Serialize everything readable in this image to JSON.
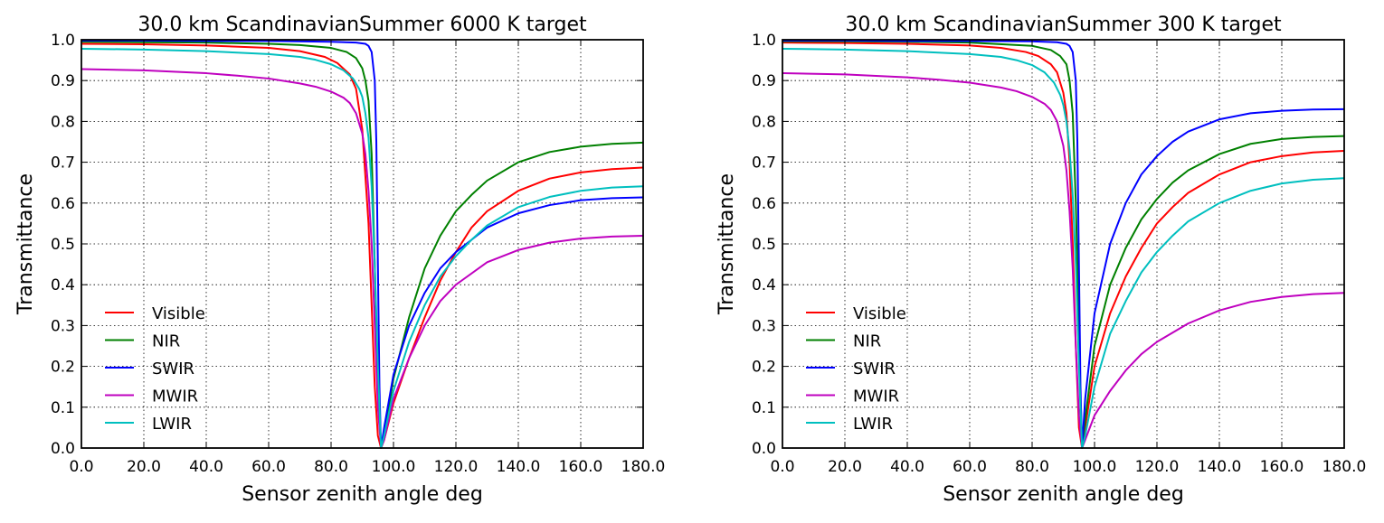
{
  "chart_data": [
    {
      "type": "line",
      "title": "30.0 km ScandinavianSummer 6000 K target",
      "xlabel": "Sensor zenith angle deg",
      "ylabel": "Transmittance",
      "xlim": [
        0,
        180
      ],
      "ylim": [
        0,
        1
      ],
      "xticks": [
        "0.0",
        "20.0",
        "40.0",
        "60.0",
        "80.0",
        "100.0",
        "120.0",
        "140.0",
        "160.0",
        "180.0"
      ],
      "yticks": [
        "0.0",
        "0.1",
        "0.2",
        "0.3",
        "0.4",
        "0.5",
        "0.6",
        "0.7",
        "0.8",
        "0.9",
        "1.0"
      ],
      "grid": true,
      "legend_position": "lower-left",
      "series": [
        {
          "name": "Visible",
          "color": "#ff0000",
          "x": [
            0,
            20,
            40,
            60,
            70,
            78,
            82,
            86,
            88,
            90,
            92,
            93,
            94,
            95,
            96,
            97,
            100,
            105,
            110,
            115,
            120,
            125,
            130,
            140,
            150,
            160,
            170,
            180
          ],
          "y": [
            0.99,
            0.989,
            0.986,
            0.98,
            0.972,
            0.958,
            0.943,
            0.915,
            0.88,
            0.78,
            0.55,
            0.35,
            0.15,
            0.03,
            0.0,
            0.02,
            0.11,
            0.22,
            0.32,
            0.41,
            0.48,
            0.54,
            0.58,
            0.63,
            0.66,
            0.675,
            0.683,
            0.687
          ]
        },
        {
          "name": "NIR",
          "color": "#008000",
          "x": [
            0,
            20,
            40,
            60,
            70,
            80,
            85,
            88,
            90,
            91,
            92,
            93,
            94,
            95,
            96,
            97,
            100,
            105,
            110,
            115,
            120,
            125,
            130,
            140,
            150,
            160,
            170,
            180
          ],
          "y": [
            0.995,
            0.994,
            0.993,
            0.99,
            0.987,
            0.98,
            0.97,
            0.955,
            0.93,
            0.9,
            0.85,
            0.72,
            0.45,
            0.15,
            0.0,
            0.03,
            0.17,
            0.32,
            0.44,
            0.52,
            0.58,
            0.62,
            0.655,
            0.7,
            0.725,
            0.738,
            0.745,
            0.748
          ]
        },
        {
          "name": "SWIR",
          "color": "#0000ff",
          "x": [
            0,
            20,
            40,
            60,
            80,
            88,
            91,
            92,
            93,
            94,
            94.5,
            95,
            95.5,
            96,
            97,
            100,
            105,
            110,
            115,
            120,
            125,
            130,
            140,
            150,
            160,
            170,
            180
          ],
          "y": [
            0.998,
            0.998,
            0.997,
            0.997,
            0.995,
            0.993,
            0.99,
            0.985,
            0.97,
            0.9,
            0.75,
            0.45,
            0.15,
            0.0,
            0.05,
            0.18,
            0.3,
            0.38,
            0.44,
            0.48,
            0.51,
            0.54,
            0.575,
            0.595,
            0.607,
            0.612,
            0.614
          ]
        },
        {
          "name": "MWIR",
          "color": "#bf00bf",
          "x": [
            0,
            20,
            40,
            50,
            60,
            70,
            75,
            80,
            84,
            86,
            88,
            90,
            91,
            92,
            93,
            94,
            95,
            96,
            97,
            100,
            105,
            110,
            115,
            120,
            130,
            140,
            150,
            160,
            170,
            180
          ],
          "y": [
            0.928,
            0.925,
            0.918,
            0.912,
            0.905,
            0.893,
            0.885,
            0.873,
            0.858,
            0.845,
            0.82,
            0.77,
            0.72,
            0.63,
            0.5,
            0.3,
            0.1,
            0.0,
            0.02,
            0.12,
            0.22,
            0.3,
            0.36,
            0.4,
            0.455,
            0.485,
            0.503,
            0.513,
            0.518,
            0.52
          ]
        },
        {
          "name": "LWIR",
          "color": "#00bfbf",
          "x": [
            0,
            20,
            40,
            60,
            70,
            75,
            80,
            84,
            87,
            89,
            90,
            91,
            92,
            93,
            94,
            95,
            96,
            97,
            100,
            105,
            110,
            115,
            120,
            125,
            130,
            140,
            150,
            160,
            170,
            180
          ],
          "y": [
            0.978,
            0.976,
            0.972,
            0.965,
            0.958,
            0.951,
            0.94,
            0.925,
            0.905,
            0.88,
            0.86,
            0.82,
            0.76,
            0.64,
            0.45,
            0.2,
            0.0,
            0.03,
            0.14,
            0.26,
            0.35,
            0.42,
            0.47,
            0.51,
            0.545,
            0.59,
            0.615,
            0.63,
            0.638,
            0.641
          ]
        }
      ]
    },
    {
      "type": "line",
      "title": "30.0 km ScandinavianSummer 300 K target",
      "xlabel": "Sensor zenith angle deg",
      "ylabel": "Transmittance",
      "xlim": [
        0,
        180
      ],
      "ylim": [
        0,
        1
      ],
      "xticks": [
        "0.0",
        "20.0",
        "40.0",
        "60.0",
        "80.0",
        "100.0",
        "120.0",
        "140.0",
        "160.0",
        "180.0"
      ],
      "yticks": [
        "0.0",
        "0.1",
        "0.2",
        "0.3",
        "0.4",
        "0.5",
        "0.6",
        "0.7",
        "0.8",
        "0.9",
        "1.0"
      ],
      "grid": true,
      "legend_position": "lower-left",
      "series": [
        {
          "name": "Visible",
          "color": "#ff0000",
          "x": [
            0,
            20,
            40,
            60,
            70,
            78,
            82,
            86,
            88,
            90,
            91,
            92,
            93,
            94,
            95,
            96,
            97,
            100,
            105,
            110,
            115,
            120,
            125,
            130,
            140,
            150,
            160,
            170,
            180
          ],
          "y": [
            0.993,
            0.992,
            0.99,
            0.986,
            0.98,
            0.97,
            0.96,
            0.94,
            0.92,
            0.87,
            0.82,
            0.7,
            0.5,
            0.25,
            0.05,
            0.0,
            0.05,
            0.2,
            0.33,
            0.42,
            0.49,
            0.55,
            0.59,
            0.625,
            0.67,
            0.7,
            0.715,
            0.724,
            0.728
          ]
        },
        {
          "name": "NIR",
          "color": "#008000",
          "x": [
            0,
            20,
            40,
            60,
            80,
            86,
            89,
            91,
            92,
            93,
            94,
            95,
            95.5,
            96,
            97,
            100,
            105,
            110,
            115,
            120,
            125,
            130,
            140,
            150,
            160,
            170,
            180
          ],
          "y": [
            0.996,
            0.996,
            0.995,
            0.993,
            0.985,
            0.975,
            0.96,
            0.94,
            0.9,
            0.82,
            0.6,
            0.3,
            0.1,
            0.0,
            0.07,
            0.25,
            0.4,
            0.49,
            0.56,
            0.61,
            0.65,
            0.68,
            0.72,
            0.745,
            0.757,
            0.762,
            0.764
          ]
        },
        {
          "name": "SWIR",
          "color": "#0000ff",
          "x": [
            0,
            20,
            40,
            60,
            80,
            88,
            91,
            92,
            93,
            94,
            94.5,
            95,
            95.5,
            96,
            97,
            100,
            105,
            110,
            115,
            120,
            125,
            130,
            140,
            150,
            160,
            170,
            180
          ],
          "y": [
            0.998,
            0.998,
            0.997,
            0.997,
            0.996,
            0.994,
            0.99,
            0.985,
            0.97,
            0.9,
            0.75,
            0.45,
            0.15,
            0.0,
            0.12,
            0.33,
            0.5,
            0.6,
            0.67,
            0.715,
            0.75,
            0.775,
            0.805,
            0.82,
            0.826,
            0.829,
            0.83
          ]
        },
        {
          "name": "MWIR",
          "color": "#bf00bf",
          "x": [
            0,
            20,
            40,
            50,
            60,
            70,
            75,
            80,
            84,
            86,
            88,
            90,
            91,
            92,
            93,
            94,
            95,
            96,
            97,
            100,
            105,
            110,
            115,
            120,
            130,
            140,
            150,
            160,
            170,
            180
          ],
          "y": [
            0.918,
            0.915,
            0.908,
            0.902,
            0.895,
            0.883,
            0.874,
            0.86,
            0.843,
            0.828,
            0.8,
            0.74,
            0.68,
            0.58,
            0.44,
            0.25,
            0.08,
            0.0,
            0.02,
            0.08,
            0.14,
            0.19,
            0.23,
            0.26,
            0.305,
            0.337,
            0.358,
            0.37,
            0.377,
            0.38
          ]
        },
        {
          "name": "LWIR",
          "color": "#00bfbf",
          "x": [
            0,
            20,
            40,
            60,
            70,
            75,
            80,
            84,
            87,
            89,
            90,
            91,
            92,
            93,
            94,
            95,
            96,
            97,
            100,
            105,
            110,
            115,
            120,
            125,
            130,
            140,
            150,
            160,
            170,
            180
          ],
          "y": [
            0.978,
            0.976,
            0.972,
            0.965,
            0.958,
            0.95,
            0.938,
            0.92,
            0.895,
            0.865,
            0.84,
            0.8,
            0.73,
            0.62,
            0.45,
            0.2,
            0.0,
            0.03,
            0.15,
            0.28,
            0.36,
            0.43,
            0.48,
            0.52,
            0.555,
            0.6,
            0.63,
            0.648,
            0.657,
            0.661
          ]
        }
      ]
    }
  ]
}
